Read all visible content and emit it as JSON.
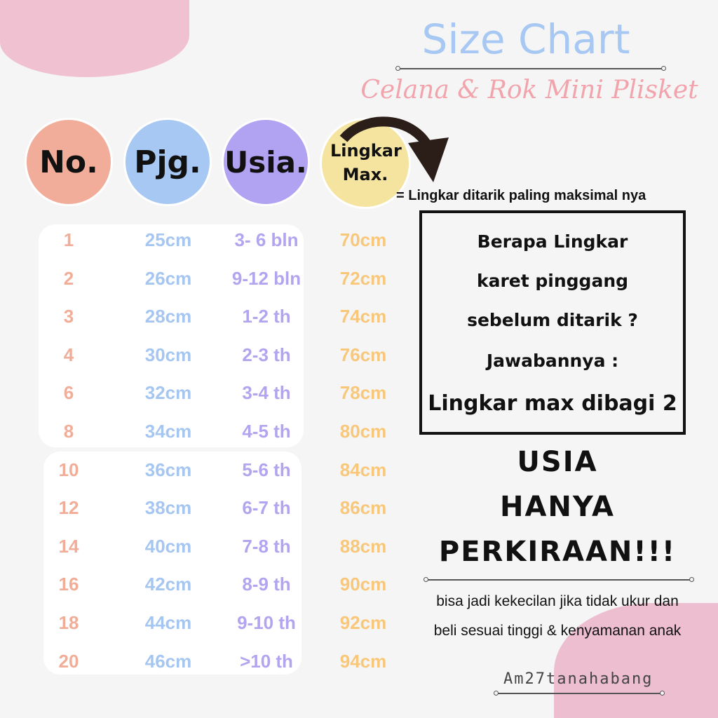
{
  "header": {
    "title": "Size Chart",
    "subtitle": "Celana & Rok Mini Plisket"
  },
  "columns": [
    {
      "label": "No.",
      "color": "#f2ad9a"
    },
    {
      "label": "Pjg.",
      "color": "#a6c8f2"
    },
    {
      "label": "Usia.",
      "color": "#b2a2f2"
    },
    {
      "label": "Lingkar Max.",
      "color": "#f5e3a0"
    }
  ],
  "legend": "= Lingkar ditarik paling maksimal nya",
  "rows": [
    {
      "no": "1",
      "pjg": "25cm",
      "usia": "3- 6 bln",
      "lingkar": "70cm"
    },
    {
      "no": "2",
      "pjg": "26cm",
      "usia": "9-12 bln",
      "lingkar": "72cm"
    },
    {
      "no": "3",
      "pjg": "28cm",
      "usia": "1-2 th",
      "lingkar": "74cm"
    },
    {
      "no": "4",
      "pjg": "30cm",
      "usia": "2-3 th",
      "lingkar": "76cm"
    },
    {
      "no": "6",
      "pjg": "32cm",
      "usia": "3-4 th",
      "lingkar": "78cm"
    },
    {
      "no": "8",
      "pjg": "34cm",
      "usia": "4-5 th",
      "lingkar": "80cm"
    },
    {
      "no": "10",
      "pjg": "36cm",
      "usia": "5-6 th",
      "lingkar": "84cm"
    },
    {
      "no": "12",
      "pjg": "38cm",
      "usia": "6-7 th",
      "lingkar": "86cm"
    },
    {
      "no": "14",
      "pjg": "40cm",
      "usia": "7-8 th",
      "lingkar": "88cm"
    },
    {
      "no": "16",
      "pjg": "42cm",
      "usia": "8-9 th",
      "lingkar": "90cm"
    },
    {
      "no": "18",
      "pjg": "44cm",
      "usia": "9-10 th",
      "lingkar": "92cm"
    },
    {
      "no": "20",
      "pjg": "46cm",
      "usia": ">10 th",
      "lingkar": "94cm"
    }
  ],
  "text_colors": {
    "no": "#f2ad98",
    "pjg": "#a6c6f2",
    "usia": "#b3a4ef",
    "lingkar": "#f8c77a"
  },
  "question_box": {
    "lines": [
      "Berapa  Lingkar",
      "karet pinggang",
      "sebelum ditarik ?",
      "Jawabannya :"
    ],
    "answer": "Lingkar max dibagi 2"
  },
  "warning": [
    "USIA",
    "HANYA",
    "PERKIRAAN!!!"
  ],
  "note": [
    "bisa jadi kekecilan jika tidak ukur dan",
    "beli sesuai tinggi  & kenyamanan anak"
  ],
  "brand": "Am27tanahabang"
}
